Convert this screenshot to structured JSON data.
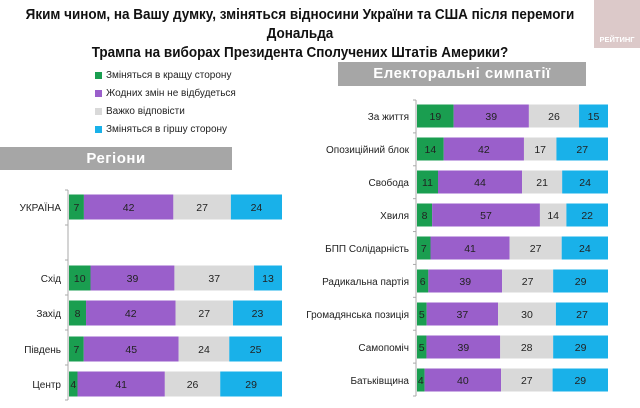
{
  "title_line1": "Яким чином, на Вашу думку, зміняться відносини України та США після перемоги Дональда",
  "title_line2": "Трампа на виборах Президента Сполучених Штатів Америки?",
  "logo_text": "РЕЙТИНГ",
  "colors": {
    "better": "#1a9e50",
    "nochange": "#9a5fcb",
    "hard": "#d9d9d9",
    "worse": "#19b1e9"
  },
  "chart_data": [
    {
      "type": "bar",
      "orientation": "horizontal-stacked-100",
      "title": "Регіони",
      "series": [
        {
          "name": "Зміняться в кращу сторону",
          "key": "better"
        },
        {
          "name": "Жодних змін не відбудеться",
          "key": "nochange"
        },
        {
          "name": "Важко відповісти",
          "key": "hard"
        },
        {
          "name": "Зміняться в гіршу сторону",
          "key": "worse"
        }
      ],
      "categories": [
        "УКРАЇНА",
        "",
        "Схід",
        "Захід",
        "Південь",
        "Центр"
      ],
      "values": [
        [
          7,
          42,
          27,
          24
        ],
        null,
        [
          10,
          39,
          37,
          13
        ],
        [
          8,
          42,
          27,
          23
        ],
        [
          7,
          45,
          24,
          25
        ],
        [
          4,
          41,
          26,
          29
        ]
      ],
      "legend": "top-left"
    },
    {
      "type": "bar",
      "orientation": "horizontal-stacked-100",
      "title": "Електоральні симпатії",
      "categories": [
        "За життя",
        "Опозиційний блок",
        "Свобода",
        "Хвиля",
        "БПП Солідарність",
        "Радикальна партія",
        "Громадянська позиція",
        "Самопоміч",
        "Батьківщина"
      ],
      "values": [
        [
          19,
          39,
          26,
          15
        ],
        [
          14,
          42,
          17,
          27
        ],
        [
          11,
          44,
          21,
          24
        ],
        [
          8,
          57,
          14,
          22
        ],
        [
          7,
          41,
          27,
          24
        ],
        [
          6,
          39,
          27,
          29
        ],
        [
          5,
          37,
          30,
          27
        ],
        [
          5,
          39,
          28,
          29
        ],
        [
          4,
          40,
          27,
          29
        ]
      ]
    }
  ]
}
